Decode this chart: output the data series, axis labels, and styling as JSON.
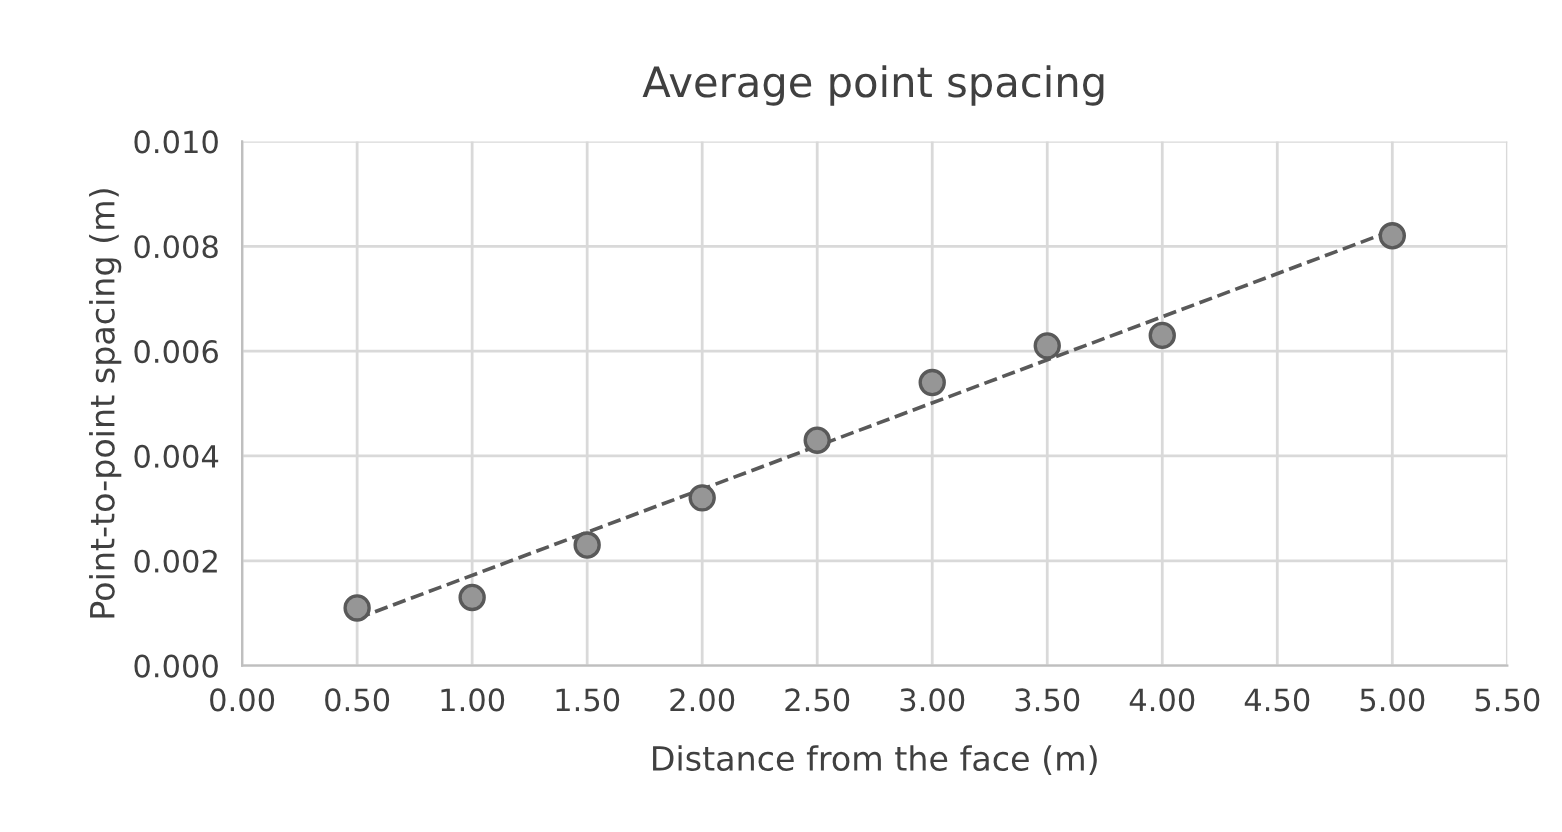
{
  "chart_data": {
    "type": "scatter",
    "title": "Average point spacing",
    "xlabel": "Distance from the face (m)",
    "ylabel": "Point-to-point spacing (m)",
    "xlim": [
      0,
      5.5
    ],
    "xticks": [
      {
        "value": 0,
        "label": "0.00"
      },
      {
        "value": 0.5,
        "label": "0.50"
      },
      {
        "value": 1,
        "label": "1.00"
      },
      {
        "value": 1.5,
        "label": "1.50"
      },
      {
        "value": 2,
        "label": "2.00"
      },
      {
        "value": 2.5,
        "label": "2.50"
      },
      {
        "value": 3,
        "label": "3.00"
      },
      {
        "value": 3.5,
        "label": "3.50"
      },
      {
        "value": 4,
        "label": "4.00"
      },
      {
        "value": 4.5,
        "label": "4.50"
      },
      {
        "value": 5,
        "label": "5.00"
      },
      {
        "value": 5.5,
        "label": "5.50"
      }
    ],
    "ylim": [
      0,
      0.01
    ],
    "yticks": [
      {
        "value": 0,
        "label": "0.000"
      },
      {
        "value": 0.002,
        "label": "0.002"
      },
      {
        "value": 0.004,
        "label": "0.004"
      },
      {
        "value": 0.006,
        "label": "0.006"
      },
      {
        "value": 0.008,
        "label": "0.008"
      },
      {
        "value": 0.01,
        "label": "0.010"
      }
    ],
    "grid": true,
    "marker": "circle",
    "series": [
      {
        "color": "#969696",
        "x": [
          0.5,
          1,
          1.5,
          2,
          2.5,
          3,
          3.5,
          4,
          5
        ],
        "values": [
          0.0011,
          0.0013,
          0.0023,
          0.0032,
          0.0043,
          0.0054,
          0.0061,
          0.0063,
          0.0082
        ]
      },
      {
        "type": "line",
        "color": "#595959",
        "line_style": "dashed",
        "marker": "none",
        "x": [
          0.5,
          5
        ],
        "values": [
          0.0009,
          0.0083
        ]
      }
    ]
  }
}
